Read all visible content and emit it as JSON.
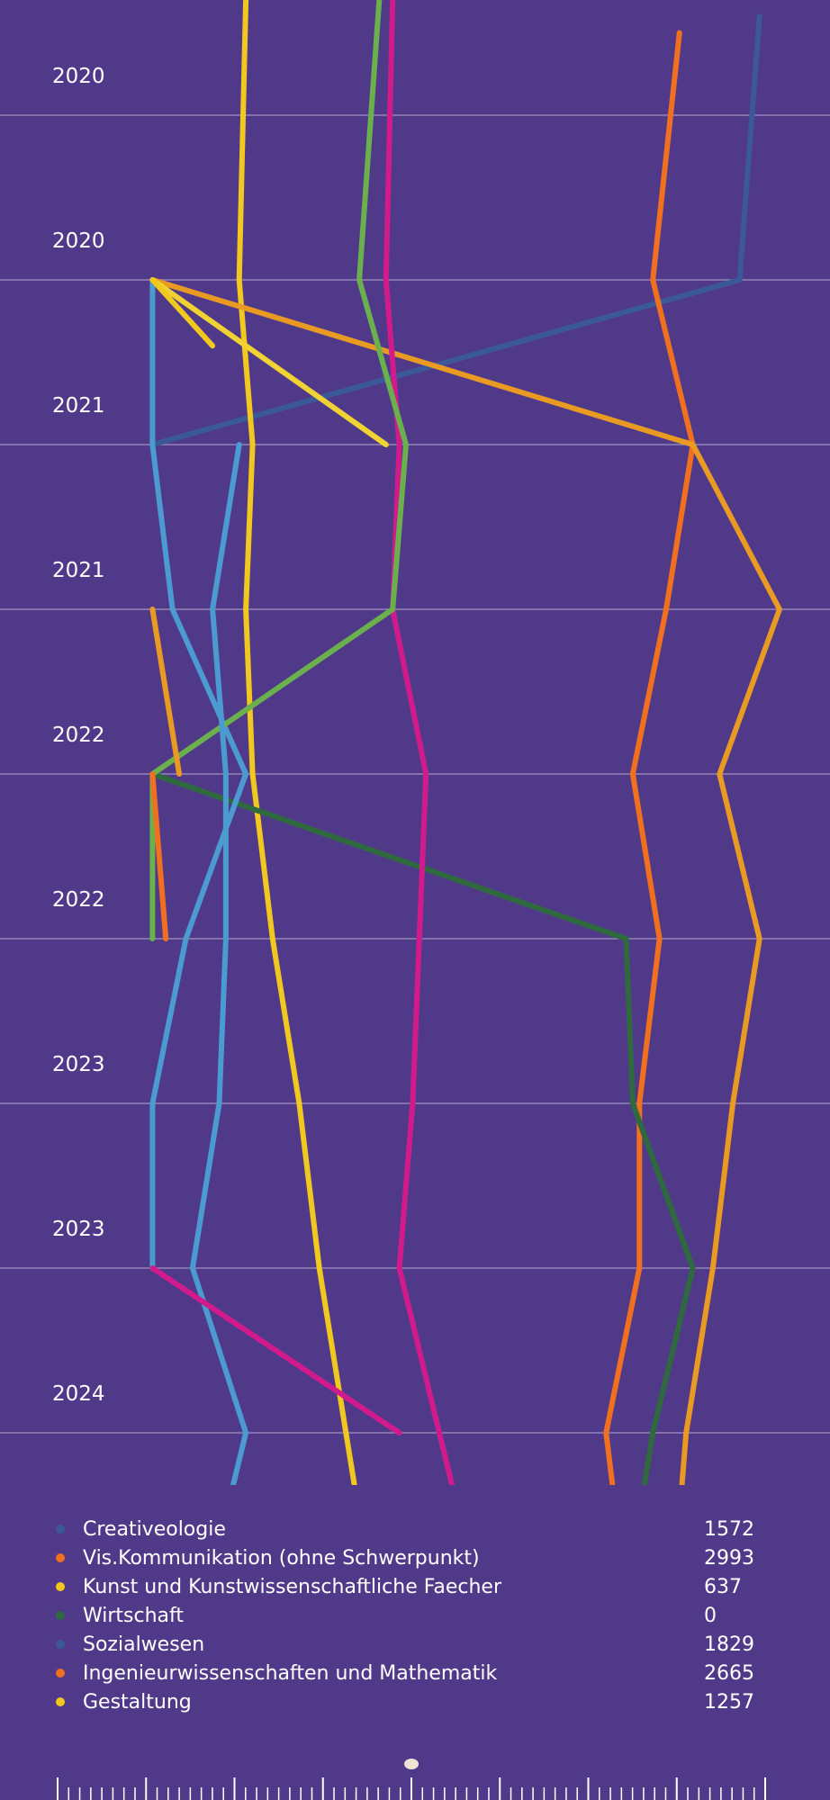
{
  "chart_data": {
    "type": "line",
    "orientation": "vertical-time",
    "y_ticks": [
      "2020",
      "2020",
      "2021",
      "2021",
      "2022",
      "2022",
      "2023",
      "2023",
      "2024"
    ],
    "y_range": [
      0,
      9
    ],
    "x_range": [
      0,
      100
    ],
    "grid": true,
    "legend": "bottom",
    "series": [
      {
        "name": "Creativeologie",
        "color": "#3b5998",
        "value": "1572",
        "points": [
          [
            92,
            -0.6
          ],
          [
            89,
            1
          ],
          [
            1,
            2
          ]
        ]
      },
      {
        "name": "Vis.Kommunikation (ohne Schwerpunkt)",
        "color": "#f07020",
        "value": "2993",
        "points": [
          [
            80,
            -0.5
          ],
          [
            76,
            1
          ],
          [
            82,
            2
          ],
          [
            78,
            3
          ],
          [
            73,
            4
          ],
          [
            77,
            5
          ],
          [
            74,
            6
          ],
          [
            74,
            7
          ],
          [
            69,
            8
          ],
          [
            72,
            9
          ],
          [
            71,
            9.3
          ]
        ]
      },
      {
        "name": "Kunst und Kunstwissenschaftliche Faecher",
        "color": "#f0c81e",
        "value": "637",
        "points": [
          [
            15,
            -0.7
          ],
          [
            14,
            1
          ],
          [
            16,
            2
          ],
          [
            15,
            3
          ],
          [
            16,
            4
          ],
          [
            19,
            5
          ],
          [
            23,
            6
          ],
          [
            26,
            7
          ],
          [
            30,
            8
          ],
          [
            34,
            9
          ],
          [
            34,
            9.3
          ]
        ]
      },
      {
        "name": "Wirtschaft",
        "color": "#2e6a3e",
        "value": "0",
        "points": [
          [
            1,
            4
          ],
          [
            72,
            5
          ],
          [
            73,
            6
          ],
          [
            82,
            7
          ],
          [
            76,
            8
          ],
          [
            72,
            9
          ],
          [
            72,
            9.3
          ]
        ]
      },
      {
        "name": "Sozialwesen",
        "color": "#4b9bd0",
        "value": "1829",
        "points": [
          [
            1,
            1
          ],
          [
            1,
            2
          ],
          [
            4,
            3
          ],
          [
            15,
            4
          ],
          [
            6,
            5
          ],
          [
            1,
            6
          ],
          [
            1,
            7
          ],
          [
            1,
            7.001
          ]
        ]
      },
      {
        "name": "Ingenieurwissenschaften und Mathematik",
        "color": "#e89a22",
        "value": "2665",
        "points": [
          [
            1,
            1
          ],
          [
            82,
            2
          ],
          [
            95,
            3
          ],
          [
            86,
            4
          ],
          [
            92,
            5
          ],
          [
            88,
            6
          ],
          [
            85,
            7
          ],
          [
            81,
            8
          ],
          [
            79,
            9
          ],
          [
            80,
            9.3
          ]
        ]
      },
      {
        "name": "Gestaltung",
        "color": "#f0d232",
        "value": "1257",
        "points": [
          [
            1,
            1
          ],
          [
            36,
            2
          ]
        ]
      },
      {
        "name": "",
        "color": "#d11b8c",
        "value": "",
        "points": [
          [
            37,
            -0.7
          ],
          [
            36,
            1
          ],
          [
            38,
            2
          ],
          [
            37,
            3
          ],
          [
            42,
            4
          ],
          [
            41,
            5
          ],
          [
            40,
            6
          ],
          [
            38,
            7
          ],
          [
            44,
            8
          ],
          [
            50,
            9
          ],
          [
            51,
            9.3
          ]
        ]
      },
      {
        "name": "",
        "color": "#6ab04c",
        "value": "",
        "points": [
          [
            35,
            -0.7
          ],
          [
            32,
            1
          ],
          [
            39,
            2
          ],
          [
            37,
            3
          ],
          [
            1,
            4
          ],
          [
            1,
            5
          ]
        ]
      },
      {
        "name": "",
        "color": "#4b9bd0",
        "value": "",
        "points": [
          [
            14,
            2
          ],
          [
            10,
            3
          ],
          [
            12,
            4
          ],
          [
            12,
            5
          ],
          [
            11,
            6
          ],
          [
            7,
            7
          ],
          [
            15,
            8
          ],
          [
            9,
            9
          ],
          [
            8,
            9.3
          ]
        ]
      },
      {
        "name": "",
        "color": "#e89a22",
        "value": "",
        "points": [
          [
            1,
            3
          ],
          [
            5,
            4
          ]
        ]
      },
      {
        "name": "",
        "color": "#f07020",
        "value": "",
        "points": [
          [
            1,
            4
          ],
          [
            3,
            5
          ]
        ]
      },
      {
        "name": "",
        "color": "#d11b8c",
        "value": "",
        "points": [
          [
            1,
            7
          ],
          [
            38,
            8
          ]
        ]
      },
      {
        "name": "",
        "color": "#f0c81e",
        "value": "",
        "points": [
          [
            1,
            1
          ],
          [
            10,
            1.4
          ]
        ]
      }
    ]
  },
  "legend": [
    {
      "name": "Creativeologie",
      "value": "1572",
      "color": "#3b5998"
    },
    {
      "name": "Vis.Kommunikation (ohne Schwerpunkt)",
      "value": "2993",
      "color": "#f07020"
    },
    {
      "name": "Kunst und Kunstwissenschaftliche Faecher",
      "value": "637",
      "color": "#f0c81e"
    },
    {
      "name": "Wirtschaft",
      "value": "0",
      "color": "#2e6a3e"
    },
    {
      "name": "Sozialwesen",
      "value": "1829",
      "color": "#3b5998"
    },
    {
      "name": "Ingenieurwissenschaften und Mathematik",
      "value": "2665",
      "color": "#f07020"
    },
    {
      "name": "Gestaltung",
      "value": "1257",
      "color": "#f0c81e"
    }
  ],
  "scrubber": {
    "position": 0.5
  }
}
